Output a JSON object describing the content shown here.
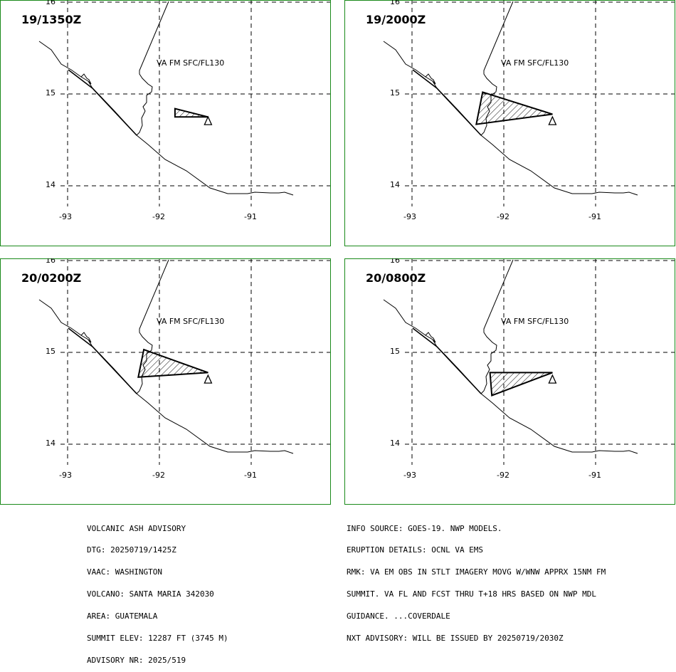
{
  "panels": [
    {
      "time": "19/1350Z",
      "layer": "VA FM SFC/FL130",
      "ash": [
        [
          -91.83,
          14.84
        ],
        [
          -91.47,
          14.75
        ],
        [
          -91.83,
          14.75
        ]
      ]
    },
    {
      "time": "19/2000Z",
      "layer": "VA FM SFC/FL130",
      "ash": [
        [
          -92.23,
          15.02
        ],
        [
          -91.47,
          14.78
        ],
        [
          -92.3,
          14.67
        ]
      ]
    },
    {
      "time": "20/0200Z",
      "layer": "VA FM SFC/FL130",
      "ash": [
        [
          -92.17,
          15.03
        ],
        [
          -91.47,
          14.78
        ],
        [
          -92.23,
          14.73
        ]
      ]
    },
    {
      "time": "20/0800Z",
      "layer": "VA FM SFC/FL130",
      "ash": [
        [
          -92.15,
          14.78
        ],
        [
          -91.47,
          14.78
        ],
        [
          -92.13,
          14.53
        ]
      ]
    }
  ],
  "axes": {
    "lon_ticks": [
      "-93",
      "-92",
      "-91"
    ],
    "lat_ticks": [
      "16",
      "15",
      "14"
    ]
  },
  "colors": {
    "frame": "#1a8a1a",
    "map": "#000000"
  },
  "advisory_left": [
    "VOLCANIC ASH ADVISORY",
    "DTG: 20250719/1425Z",
    "VAAC: WASHINGTON",
    "VOLCANO: SANTA MARIA 342030",
    "AREA: GUATEMALA",
    "SUMMIT ELEV: 12287 FT (3745 M)",
    "ADVISORY NR: 2025/519"
  ],
  "advisory_right": [
    "INFO SOURCE: GOES-19. NWP MODELS.",
    "ERUPTION DETAILS: OCNL VA EMS",
    "RMK: VA EM OBS IN STLT IMAGERY MOVG W/WNW APPRX 15NM FM",
    "SUMMIT. VA FL AND FCST THRU T+18 HRS BASED ON NWP MDL",
    "GUIDANCE. ...COVERDALE",
    "NXT ADVISORY: WILL BE ISSUED BY 20250719/2030Z"
  ]
}
